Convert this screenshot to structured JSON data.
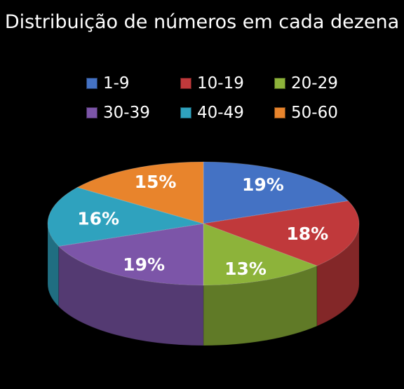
{
  "chart_data": {
    "type": "pie",
    "title": "Distribuição de números em cada dezena",
    "legend_position": "top",
    "categories": [
      "1-9",
      "10-19",
      "20-29",
      "30-39",
      "40-49",
      "50-60"
    ],
    "values": [
      19,
      18,
      13,
      19,
      16,
      15
    ],
    "labels": [
      "19%",
      "18%",
      "13%",
      "19%",
      "16%",
      "15%"
    ],
    "colors": [
      "#4472C4",
      "#C0393B",
      "#8DB33A",
      "#7C55A8",
      "#2FA2BE",
      "#E8842C"
    ]
  }
}
